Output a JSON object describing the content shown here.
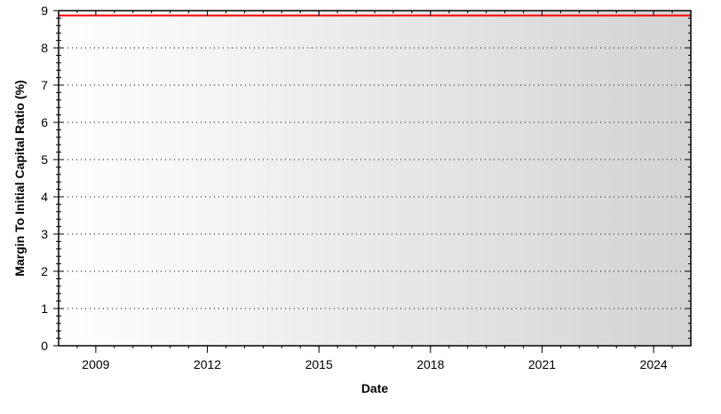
{
  "chart_data": {
    "type": "line",
    "title": "",
    "xlabel": "Date",
    "ylabel": "Margin To Initial Capital Ratio (%)",
    "xlim": [
      2008,
      2025
    ],
    "ylim": [
      0,
      9
    ],
    "x_ticks": [
      "2009",
      "2012",
      "2015",
      "2018",
      "2021",
      "2024"
    ],
    "y_ticks": [
      "0",
      "1",
      "2",
      "3",
      "4",
      "5",
      "6",
      "7",
      "8",
      "9"
    ],
    "grid": "horizontal dotted",
    "legend": "none",
    "background": "horizontal gradient white to light gray",
    "series": [
      {
        "color": "#ff0000",
        "x": [
          2008,
          2025
        ],
        "y": [
          8.87,
          8.87
        ]
      }
    ]
  }
}
